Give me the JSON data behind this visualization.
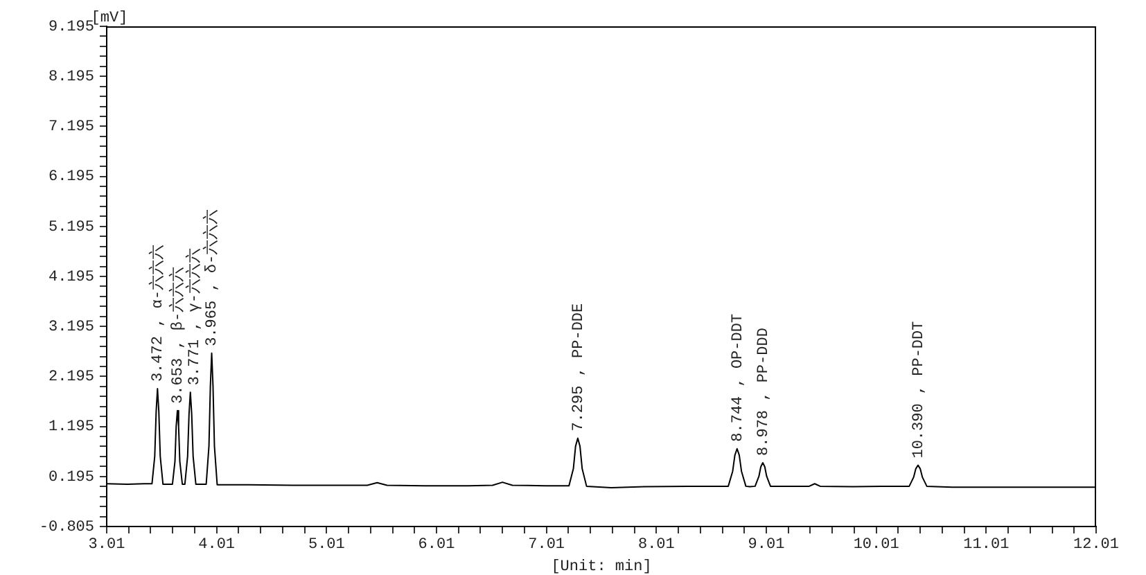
{
  "chart_data": {
    "type": "line",
    "xlabel": "[Unit: min]",
    "ylabel": "[mV]",
    "color": "#000000",
    "xlim": [
      3.01,
      12.01
    ],
    "ylim": [
      -0.805,
      9.195
    ],
    "xticks": [
      3.01,
      {
        "value": 3.21,
        "label": null
      },
      {
        "value": 3.41,
        "label": null
      },
      {
        "value": 3.61,
        "label": null
      },
      {
        "value": 3.81,
        "label": null
      },
      4.01,
      {
        "value": 4.21,
        "label": null
      },
      {
        "value": 4.41,
        "label": null
      },
      {
        "value": 4.61,
        "label": null
      },
      {
        "value": 4.81,
        "label": null
      },
      5.01,
      {
        "value": 5.21,
        "label": null
      },
      {
        "value": 5.41,
        "label": null
      },
      {
        "value": 5.61,
        "label": null
      },
      {
        "value": 5.81,
        "label": null
      },
      6.01,
      {
        "value": 6.21,
        "label": null
      },
      {
        "value": 6.41,
        "label": null
      },
      {
        "value": 6.61,
        "label": null
      },
      {
        "value": 6.81,
        "label": null
      },
      7.01,
      {
        "value": 7.21,
        "label": null
      },
      {
        "value": 7.41,
        "label": null
      },
      {
        "value": 7.61,
        "label": null
      },
      {
        "value": 7.81,
        "label": null
      },
      8.01,
      {
        "value": 8.21,
        "label": null
      },
      {
        "value": 8.41,
        "label": null
      },
      {
        "value": 8.61,
        "label": null
      },
      {
        "value": 8.81,
        "label": null
      },
      9.01,
      {
        "value": 9.21,
        "label": null
      },
      {
        "value": 9.41,
        "label": null
      },
      {
        "value": 9.61,
        "label": null
      },
      {
        "value": 9.81,
        "label": null
      },
      10.01,
      {
        "value": 10.21,
        "label": null
      },
      {
        "value": 10.41,
        "label": null
      },
      {
        "value": 10.61,
        "label": null
      },
      {
        "value": 10.81,
        "label": null
      },
      11.01,
      {
        "value": 11.21,
        "label": null
      },
      {
        "value": 11.41,
        "label": null
      },
      {
        "value": 11.61,
        "label": null
      },
      {
        "value": 11.81,
        "label": null
      },
      12.01
    ],
    "yticks": [
      -0.805,
      {
        "value": -0.605,
        "label": null
      },
      {
        "value": -0.405,
        "label": null
      },
      {
        "value": -0.205,
        "label": null
      },
      {
        "value": -0.005,
        "label": null
      },
      0.195,
      {
        "value": 0.395,
        "label": null
      },
      {
        "value": 0.595,
        "label": null
      },
      {
        "value": 0.795,
        "label": null
      },
      {
        "value": 0.995,
        "label": null
      },
      1.195,
      {
        "value": 1.395,
        "label": null
      },
      {
        "value": 1.595,
        "label": null
      },
      {
        "value": 1.795,
        "label": null
      },
      {
        "value": 1.995,
        "label": null
      },
      2.195,
      {
        "value": 2.395,
        "label": null
      },
      {
        "value": 2.595,
        "label": null
      },
      {
        "value": 2.795,
        "label": null
      },
      {
        "value": 2.995,
        "label": null
      },
      3.195,
      {
        "value": 3.395,
        "label": null
      },
      {
        "value": 3.595,
        "label": null
      },
      {
        "value": 3.795,
        "label": null
      },
      {
        "value": 3.995,
        "label": null
      },
      4.195,
      {
        "value": 4.395,
        "label": null
      },
      {
        "value": 4.595,
        "label": null
      },
      {
        "value": 4.795,
        "label": null
      },
      {
        "value": 4.995,
        "label": null
      },
      5.195,
      {
        "value": 5.395,
        "label": null
      },
      {
        "value": 5.595,
        "label": null
      },
      {
        "value": 5.795,
        "label": null
      },
      {
        "value": 5.995,
        "label": null
      },
      6.195,
      {
        "value": 6.395,
        "label": null
      },
      {
        "value": 6.595,
        "label": null
      },
      {
        "value": 6.795,
        "label": null
      },
      {
        "value": 6.995,
        "label": null
      },
      7.195,
      {
        "value": 7.395,
        "label": null
      },
      {
        "value": 7.595,
        "label": null
      },
      {
        "value": 7.795,
        "label": null
      },
      {
        "value": 7.995,
        "label": null
      },
      8.195,
      {
        "value": 8.395,
        "label": null
      },
      {
        "value": 8.595,
        "label": null
      },
      {
        "value": 8.795,
        "label": null
      },
      {
        "value": 8.995,
        "label": null
      },
      9.195
    ],
    "x": [
      3.01,
      3.2,
      3.35,
      3.422,
      3.447,
      3.46,
      3.472,
      3.484,
      3.497,
      3.522,
      3.6,
      3.608,
      3.631,
      3.642,
      3.653,
      3.664,
      3.675,
      3.698,
      3.721,
      3.746,
      3.759,
      3.771,
      3.783,
      3.796,
      3.821,
      3.915,
      3.94,
      3.953,
      3.965,
      3.977,
      3.99,
      4.015,
      4.3,
      4.7,
      5.1,
      5.38,
      5.47,
      5.56,
      5.9,
      6.3,
      6.52,
      6.61,
      6.7,
      7.0,
      7.215,
      7.255,
      7.275,
      7.295,
      7.315,
      7.335,
      7.375,
      7.6,
      7.9,
      8.3,
      8.6,
      8.664,
      8.704,
      8.724,
      8.744,
      8.764,
      8.784,
      8.824,
      8.86,
      8.908,
      8.943,
      8.96,
      8.978,
      8.996,
      9.013,
      9.048,
      9.3,
      9.4,
      9.45,
      9.5,
      9.8,
      10.1,
      10.31,
      10.35,
      10.37,
      10.39,
      10.41,
      10.43,
      10.47,
      10.7,
      11.1,
      11.5,
      11.9,
      12.01
    ],
    "values": [
      0.05,
      0.04,
      0.05,
      0.05,
      0.6,
      1.5,
      1.95,
      1.5,
      0.6,
      0.04,
      0.04,
      0.04,
      0.5,
      1.2,
      1.51,
      1.2,
      0.5,
      0.04,
      0.04,
      0.6,
      1.45,
      1.88,
      1.45,
      0.6,
      0.04,
      0.04,
      0.8,
      2.0,
      2.66,
      2.0,
      0.8,
      0.03,
      0.03,
      0.02,
      0.02,
      0.02,
      0.07,
      0.02,
      0.01,
      0.01,
      0.02,
      0.08,
      0.02,
      0.01,
      0.01,
      0.35,
      0.8,
      0.96,
      0.8,
      0.35,
      0.0,
      -0.03,
      -0.01,
      0.0,
      0.0,
      0.0,
      0.3,
      0.62,
      0.75,
      0.62,
      0.3,
      0.0,
      -0.01,
      0.0,
      0.2,
      0.39,
      0.47,
      0.39,
      0.2,
      0.0,
      0.0,
      0.0,
      0.05,
      0.0,
      -0.01,
      0.0,
      0.0,
      0.18,
      0.35,
      0.42,
      0.35,
      0.18,
      0.0,
      -0.02,
      -0.02,
      -0.02,
      -0.02,
      -0.02
    ],
    "annotations": [
      {
        "text": "3.472 , α-六六六",
        "x": 3.472,
        "y": 1.95
      },
      {
        "text": "3.653 , β-六六六",
        "x": 3.653,
        "y": 1.51
      },
      {
        "text": "3.771 , γ-六六六",
        "x": 3.771,
        "y": 1.88
      },
      {
        "text": "3.965 , δ-六六六",
        "x": 3.965,
        "y": 2.66
      },
      {
        "text": "7.295 , PP-DDE",
        "x": 7.295,
        "y": 0.96
      },
      {
        "text": "8.744 , OP-DDT",
        "x": 8.744,
        "y": 0.75
      },
      {
        "text": "8.978 , PP-DDD",
        "x": 8.978,
        "y": 0.47
      },
      {
        "text": "10.390 , PP-DDT",
        "x": 10.39,
        "y": 0.42
      }
    ]
  }
}
